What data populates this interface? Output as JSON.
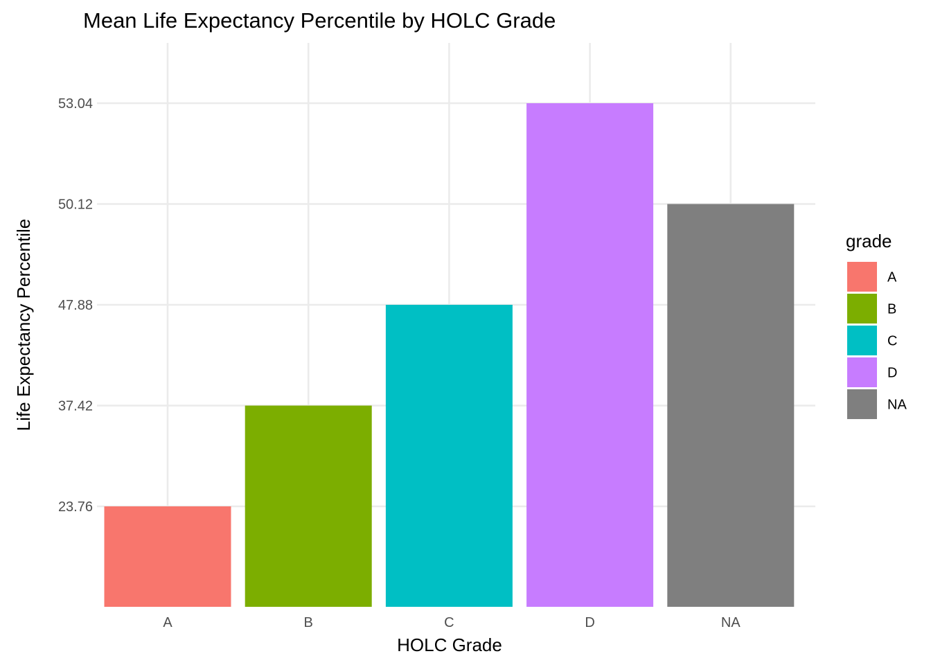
{
  "chart_data": {
    "type": "bar",
    "title": "Mean Life Expectancy Percentile by HOLC Grade",
    "xlabel": "HOLC Grade",
    "ylabel": "Life Expectancy Percentile",
    "categories": [
      "A",
      "B",
      "C",
      "D",
      "NA"
    ],
    "values": [
      23.76,
      37.42,
      47.88,
      53.04,
      50.12
    ],
    "colors": [
      "#F8766D",
      "#7CAE00",
      "#00BFC4",
      "#C77CFF",
      "#7F7F7F"
    ],
    "y_tick_labels": [
      "23.76",
      "37.42",
      "47.88",
      "50.12",
      "53.04"
    ],
    "y_axis_note": "Tick labels are placed at evenly spaced positions (rank order), not at a linear scale.",
    "grid": true,
    "legend": {
      "title": "grade",
      "placement": "right",
      "entries": [
        "A",
        "B",
        "C",
        "D",
        "NA"
      ]
    }
  }
}
